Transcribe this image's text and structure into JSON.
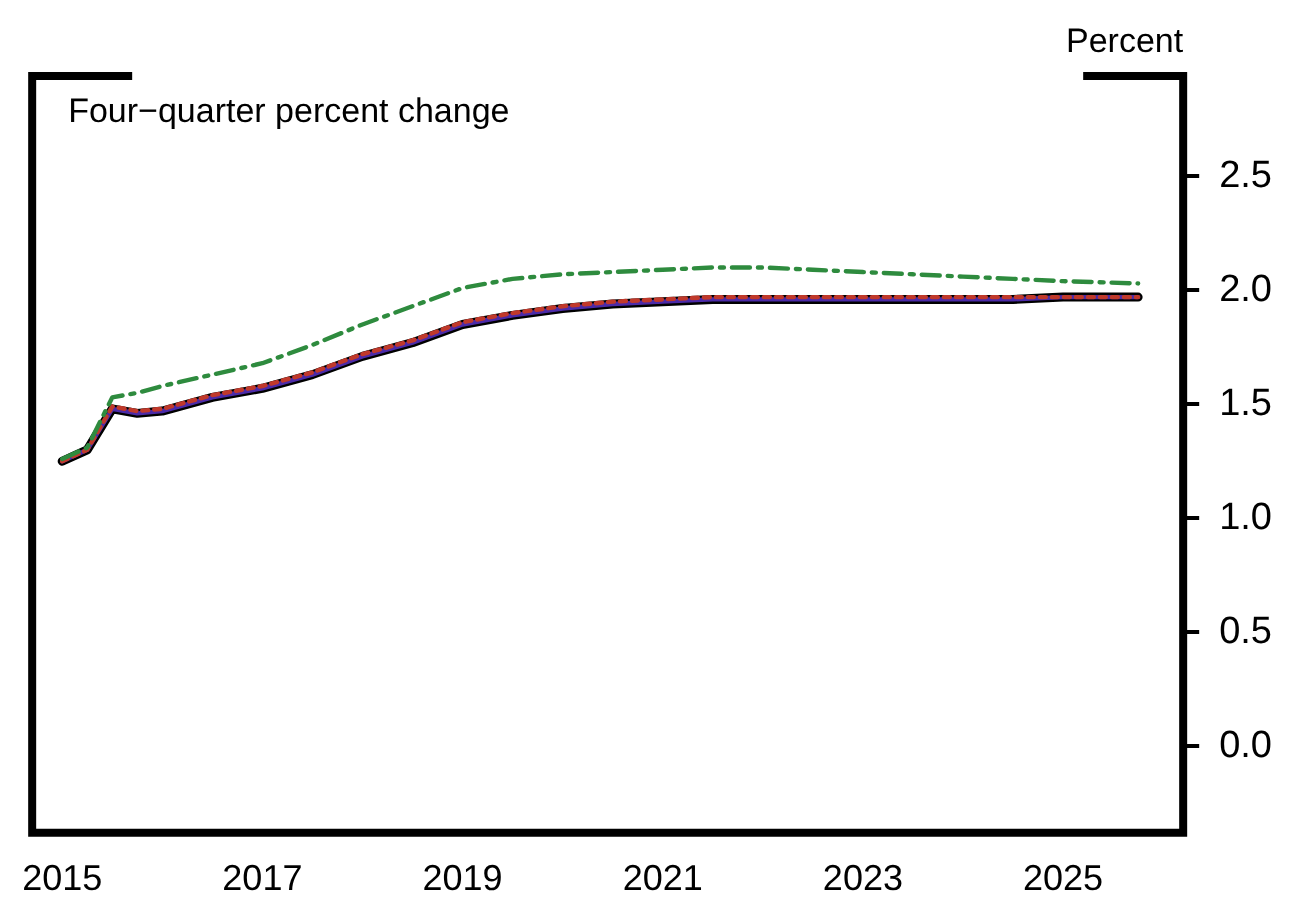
{
  "chart_data": {
    "type": "line",
    "ylabel": "Percent",
    "annotations": [
      "Four−quarter percent change"
    ],
    "x": [
      2015,
      2015.25,
      2015.5,
      2015.75,
      2016,
      2016.5,
      2017,
      2017.5,
      2018,
      2018.5,
      2019,
      2019.5,
      2020,
      2020.5,
      2021,
      2021.5,
      2022,
      2022.5,
      2023,
      2023.5,
      2024,
      2024.5,
      2025,
      2025.75
    ],
    "series": [
      {
        "color": "#000000",
        "line_style": "solid",
        "values": [
          1.25,
          1.3,
          1.48,
          1.46,
          1.47,
          1.53,
          1.57,
          1.63,
          1.71,
          1.77,
          1.85,
          1.89,
          1.92,
          1.94,
          1.95,
          1.96,
          1.96,
          1.96,
          1.96,
          1.96,
          1.96,
          1.96,
          1.97,
          1.97
        ]
      },
      {
        "color": "#4b2aa8",
        "line_style": "solid",
        "values": [
          1.25,
          1.3,
          1.48,
          1.46,
          1.47,
          1.53,
          1.57,
          1.63,
          1.71,
          1.77,
          1.85,
          1.89,
          1.92,
          1.94,
          1.95,
          1.96,
          1.96,
          1.96,
          1.96,
          1.96,
          1.96,
          1.96,
          1.97,
          1.97
        ]
      },
      {
        "color": "#c0392b",
        "line_style": "dotted",
        "values": [
          1.25,
          1.3,
          1.49,
          1.47,
          1.48,
          1.54,
          1.58,
          1.64,
          1.72,
          1.78,
          1.86,
          1.9,
          1.93,
          1.95,
          1.96,
          1.97,
          1.97,
          1.97,
          1.97,
          1.97,
          1.97,
          1.97,
          1.97,
          1.97
        ]
      },
      {
        "color": "#2e8b3e",
        "line_style": "dashed",
        "values": [
          1.26,
          1.31,
          1.53,
          1.55,
          1.58,
          1.63,
          1.68,
          1.76,
          1.85,
          1.93,
          2.01,
          2.05,
          2.07,
          2.08,
          2.09,
          2.1,
          2.1,
          2.09,
          2.08,
          2.07,
          2.06,
          2.05,
          2.04,
          2.03
        ]
      }
    ],
    "xlim": [
      2014.7,
      2026.2
    ],
    "xticks": [
      2015,
      2017,
      2019,
      2021,
      2023,
      2025
    ],
    "ylim": [
      -0.38,
      2.94
    ],
    "yticks": [
      {
        "value": 0,
        "label": "0.0"
      },
      {
        "value": 0.5,
        "label": "0.5"
      },
      {
        "value": 1,
        "label": "1.0"
      },
      {
        "value": 1.5,
        "label": "1.5"
      },
      {
        "value": 2,
        "label": "2.0"
      },
      {
        "value": 2.5,
        "label": "2.5"
      }
    ],
    "grid": false,
    "legend": false,
    "marker": "none"
  }
}
